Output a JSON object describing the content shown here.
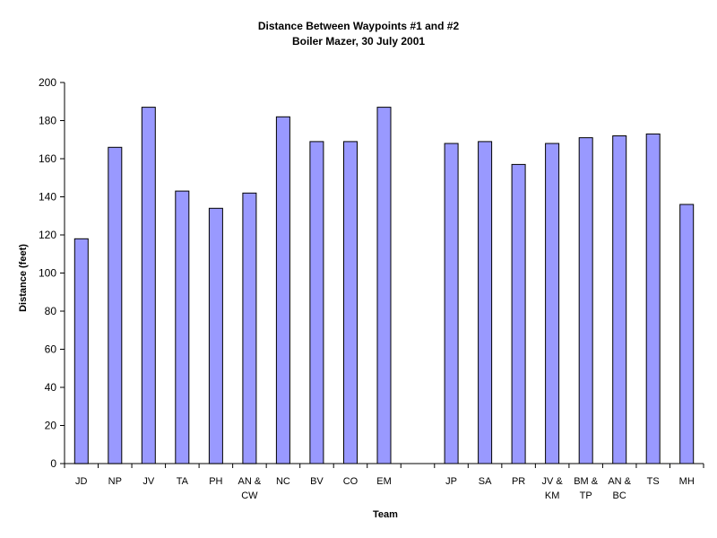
{
  "chart_data": {
    "type": "bar",
    "title": "Distance Between Waypoints #1 and #2",
    "subtitle": "Boiler Mazer, 30 July 2001",
    "xlabel": "Team",
    "ylabel": "Distance (feet)",
    "ylim": [
      0,
      200
    ],
    "yticks": [
      0,
      20,
      40,
      60,
      80,
      100,
      120,
      140,
      160,
      180,
      200
    ],
    "grid": false,
    "legend": "none",
    "bar_color": "#9999ff",
    "categories": [
      [
        "JD"
      ],
      [
        "NP"
      ],
      [
        "JV"
      ],
      [
        "TA"
      ],
      [
        "PH"
      ],
      [
        "AN &",
        "CW"
      ],
      [
        "NC"
      ],
      [
        "BV"
      ],
      [
        "CO"
      ],
      [
        "EM"
      ],
      [
        ""
      ],
      [
        "JP"
      ],
      [
        "SA"
      ],
      [
        "PR"
      ],
      [
        "JV &",
        "KM"
      ],
      [
        "BM &",
        "TP"
      ],
      [
        "AN &",
        "BC"
      ],
      [
        "TS"
      ],
      [
        "MH"
      ]
    ],
    "values": [
      118,
      166,
      187,
      143,
      134,
      142,
      182,
      169,
      169,
      187,
      null,
      168,
      169,
      157,
      168,
      171,
      172,
      173,
      136
    ]
  }
}
